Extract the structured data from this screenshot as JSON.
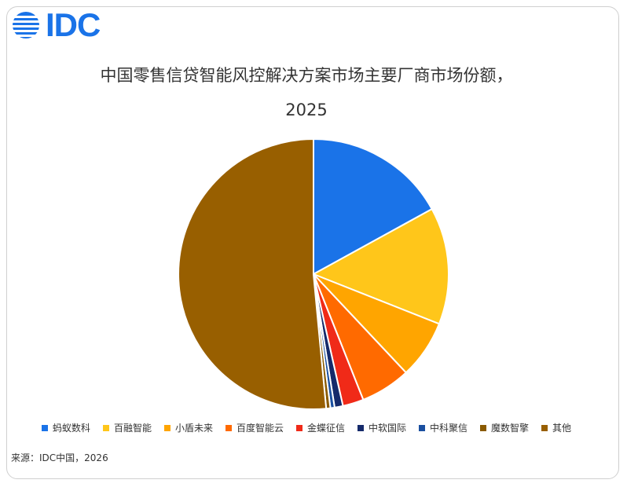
{
  "logo": {
    "text": "IDC",
    "color": "#1a73e8"
  },
  "source": "来源：IDC中国，2026",
  "chart_data": {
    "type": "pie",
    "title_line1": "中国零售信贷智能风控解决方案市场主要厂商市场份额，",
    "title_line2": "2025",
    "legend_position": "bottom",
    "start_angle_deg": 0,
    "direction": "clockwise",
    "slices": [
      {
        "label": "蚂蚁数科",
        "value": 17.0,
        "color": "#1a73e8"
      },
      {
        "label": "百融智能",
        "value": 14.0,
        "color": "#ffc61a"
      },
      {
        "label": "小盾未来",
        "value": 7.0,
        "color": "#ffa500"
      },
      {
        "label": "百度智能云",
        "value": 6.0,
        "color": "#ff6a00"
      },
      {
        "label": "金蝶征信",
        "value": 2.5,
        "color": "#f02a18"
      },
      {
        "label": "中软国际",
        "value": 1.0,
        "color": "#152a6b"
      },
      {
        "label": "中科聚信",
        "value": 0.5,
        "color": "#1a4fa0"
      },
      {
        "label": "魔数智擎",
        "value": 0.5,
        "color": "#8a5a00"
      },
      {
        "label": "其他",
        "value": 51.5,
        "color": "#985f00"
      }
    ]
  }
}
